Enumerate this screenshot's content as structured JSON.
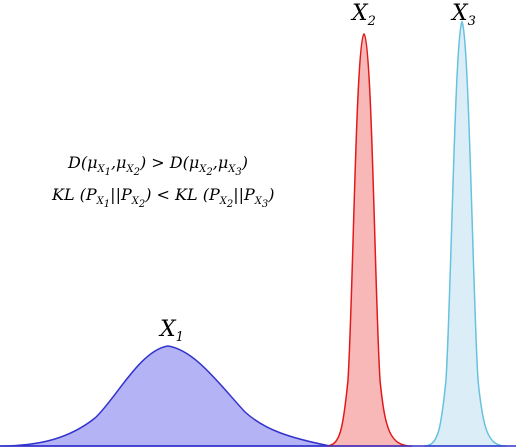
{
  "distributions": [
    {
      "id": "x1",
      "label": "X",
      "sub": "1",
      "fill": "#b3b3f5",
      "stroke": "#3333cc"
    },
    {
      "id": "x2",
      "label": "X",
      "sub": "2",
      "fill": "#f9b8b8",
      "stroke": "#e01b1b"
    },
    {
      "id": "x3",
      "label": "X",
      "sub": "3",
      "fill": "#dbeef8",
      "stroke": "#66c2dd"
    }
  ],
  "equations": {
    "line1": {
      "d_left": "D(μ",
      "x": "X",
      "s1": "1",
      "comma": ",μ",
      "s2": "2",
      "op": ") > D(μ",
      "s3": "2",
      "comma2": ",μ",
      "s4": "3",
      "close": ")"
    },
    "line2": {
      "kl1": "KL (P",
      "x": "X",
      "s1": "1",
      "bars": "||P",
      "s2": "2",
      "op": ") < KL (P",
      "s3": "2",
      "bars2": "||P",
      "s4": "3",
      "close": ")"
    }
  },
  "baseline_color": "#3333cc"
}
